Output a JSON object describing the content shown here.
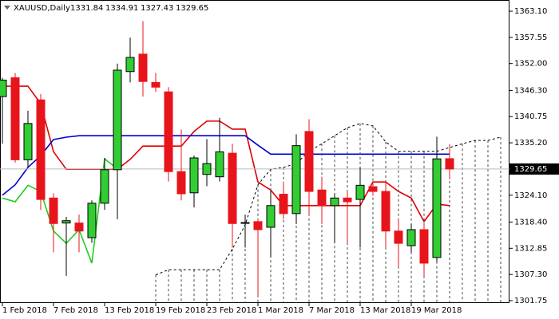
{
  "chart_data": {
    "type": "candlestick",
    "symbol": "XAUUSD,Daily",
    "categories": [
      "1 Feb 2018",
      null,
      null,
      null,
      "7 Feb 2018",
      null,
      null,
      null,
      "13 Feb 2018",
      null,
      null,
      null,
      "19 Feb 2018",
      null,
      null,
      null,
      "23 Feb 2018",
      null,
      null,
      null,
      "1 Mar 2018",
      null,
      null,
      null,
      "7 Mar 2018",
      null,
      null,
      null,
      "13 Mar 2018",
      null,
      null,
      null,
      "19 Mar 2018",
      null,
      null,
      null,
      null,
      null,
      null,
      null
    ],
    "open": [
      1345,
      1349,
      1331.6,
      1344.3,
      1323.5,
      1318.2,
      1318.2,
      1315.1,
      1322.4,
      1329.5,
      1350.3,
      1354,
      1348,
      1346,
      1329.1,
      1324.6,
      1328.5,
      1328,
      1333,
      1318.2,
      1318.5,
      1317.3,
      1324.3,
      1320.2,
      1337.6,
      1325.2,
      1321.9,
      1323.5,
      1323.2,
      1325.9,
      1324.9,
      1316.5,
      1313.4,
      1316.8,
      1310.9,
      1331.84,
      null,
      null,
      null,
      null
    ],
    "high": [
      1349,
      1350,
      1342,
      1345.5,
      1324.5,
      1319.5,
      1320,
      1323,
      1332,
      1352,
      1357.5,
      1361,
      1350,
      1347,
      1338,
      1332.5,
      1336,
      1340.5,
      1335,
      1320,
      1319,
      1325,
      1327,
      1337,
      1340.2,
      1328,
      1324.5,
      1325,
      1330,
      1326.5,
      1327,
      1319,
      1318,
      1318,
      1336.5,
      1334.91,
      null,
      null,
      null,
      null
    ],
    "low": [
      1335,
      1331,
      1330,
      1321,
      1312,
      1307,
      1312,
      1314,
      1321,
      1319,
      1348,
      1345,
      1346,
      1327,
      1323,
      1321.5,
      1326,
      1327,
      1313,
      1313,
      1303,
      1311,
      1319,
      1318,
      1320,
      1318,
      1314,
      1314,
      1313,
      1324,
      1313,
      1309,
      1312,
      1307,
      1310,
      1327.43,
      null,
      null,
      null,
      null
    ],
    "close": [
      1348.5,
      1331.6,
      1339.3,
      1323.2,
      1318.1,
      1318.7,
      1316.5,
      1322.4,
      1329.5,
      1350.6,
      1353.3,
      1348.2,
      1347,
      1329.1,
      1324.4,
      1332,
      1330.8,
      1333.3,
      1318.1,
      1318.3,
      1316.8,
      1321.9,
      1320.2,
      1334.6,
      1324.9,
      1321.9,
      1323.5,
      1322.7,
      1326.2,
      1324.9,
      1316.5,
      1313.9,
      1316.8,
      1309.7,
      1331.8,
      1329.65,
      null,
      null,
      null,
      null
    ],
    "up_color": "#32cd32",
    "down_color": "#e8141b",
    "lines": [
      {
        "color": "#e00000",
        "style": "solid",
        "values": [
          1347.2,
          1347.2,
          1347.2,
          1343.5,
          1333.3,
          1329.6,
          1329.6,
          1329.6,
          1329.6,
          1329.6,
          1331.7,
          1334.5,
          1334.5,
          1334.5,
          1334.5,
          1337.6,
          1339.8,
          1339.8,
          1338.1,
          1338.1,
          1326.9,
          1325.2,
          1321.9,
          1321.9,
          1321.9,
          1321.9,
          1321.9,
          1321.9,
          1321.9,
          1326.9,
          1326.9,
          1324.9,
          1323.5,
          1318.5,
          1322.2,
          1321.9,
          null,
          null,
          null,
          null
        ]
      },
      {
        "color": "#0000cc",
        "style": "solid",
        "values": [
          1324.1,
          1326.3,
          1330,
          1332.5,
          1335.9,
          1336.4,
          1336.7,
          1336.7,
          1336.7,
          1336.7,
          1336.7,
          1336.7,
          1336.7,
          1336.7,
          1336.7,
          1336.7,
          1336.7,
          1336.7,
          1336.7,
          1336.7,
          1334.7,
          1332.8,
          1332.8,
          1332.8,
          1332.8,
          1332.8,
          1332.8,
          1332.8,
          1332.8,
          1332.8,
          1332.8,
          1332.8,
          1332.8,
          1332.8,
          1332.8,
          1332.8,
          null,
          null,
          null,
          null
        ]
      },
      {
        "color": "#22cc22",
        "style": "solid",
        "values": [
          1323.5,
          1322.7,
          1326.2,
          1324.9,
          1316.5,
          1313.9,
          1316.8,
          1309.7,
          1331.8,
          1329.65,
          null,
          null,
          null,
          null,
          null,
          null,
          null,
          null,
          null,
          null,
          null,
          null,
          null,
          null,
          null,
          null,
          null,
          null,
          null,
          null,
          null,
          null,
          null,
          null,
          null,
          null,
          null,
          null,
          null,
          null
        ]
      },
      {
        "color": "#000000",
        "style": "dashed",
        "hatch": true,
        "values": [
          null,
          null,
          null,
          null,
          null,
          null,
          null,
          null,
          null,
          null,
          null,
          null,
          1307.2,
          1308.3,
          1308.3,
          1308.3,
          1308.3,
          1308.3,
          1312.7,
          1317.8,
          1326.3,
          1329.6,
          1330,
          1330.8,
          1333.4,
          1335,
          1336.7,
          1338.4,
          1339.3,
          1338.8,
          1335.4,
          1333.4,
          1333.4,
          1333.4,
          1333.4,
          1334.2,
          1335,
          1335.7,
          1335.7,
          1336.4
        ]
      }
    ],
    "ylim": [
      1301.24,
      1365.47
    ],
    "yticks": [
      {
        "value": 1363.1,
        "label": "1363.10"
      },
      1357.55,
      {
        "value": 1352,
        "label": "1352.00"
      },
      {
        "value": 1346.3,
        "label": "1346.30"
      },
      1340.75,
      {
        "value": 1335.2,
        "label": "1335.20"
      },
      {
        "value": 1324.1,
        "label": "1324.10"
      },
      {
        "value": 1318.4,
        "label": "1318.40"
      },
      1312.85,
      {
        "value": 1307.3,
        "label": "1307.30"
      },
      1301.75
    ]
  }
}
